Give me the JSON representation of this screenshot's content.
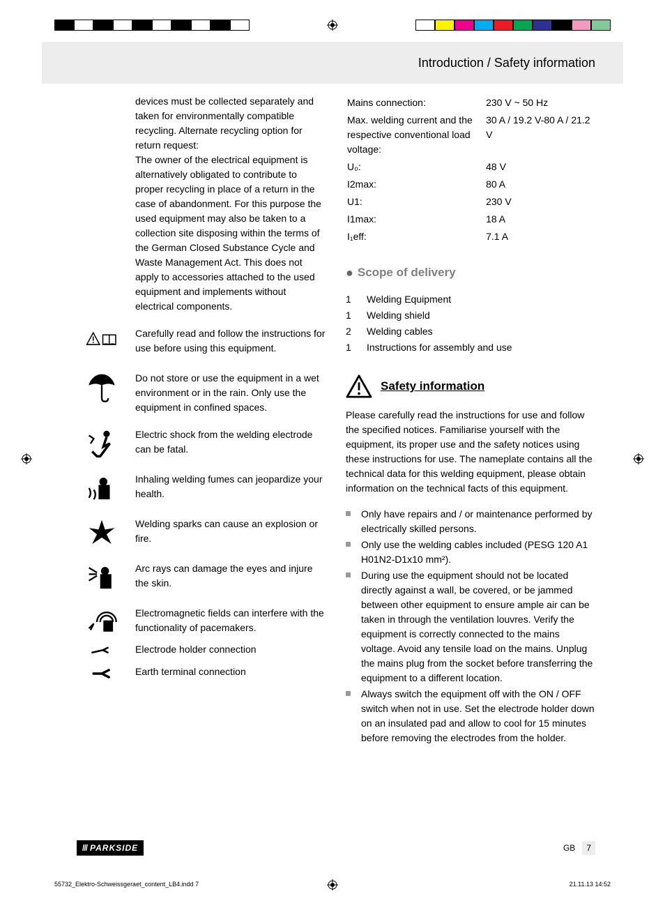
{
  "printer_bars": {
    "left_colors": [
      "#000000",
      "#ffffff",
      "#000000",
      "#ffffff",
      "#000000",
      "#ffffff",
      "#000000",
      "#ffffff",
      "#000000",
      "#ffffff"
    ],
    "right_colors": [
      "#ffffff",
      "#fff200",
      "#ec008c",
      "#00aeef",
      "#ed1c24",
      "#00a651",
      "#2e3192",
      "#000000",
      "#f49ac1",
      "#82ca9c"
    ]
  },
  "header": {
    "title": "Introduction / Safety information"
  },
  "left_column": {
    "intro_para": "devices must be collected separately and taken for environmentally compatible recycling. Alternate recycling option for return request:\nThe owner of the electrical equipment is alternatively obligated to contribute to proper recycling in place of a return in the case of abandonment. For this purpose the used equipment may also be taken to a collection site disposing within the terms of the German Closed  Substance Cycle and Waste Management Act. This does not apply to accessories attached to the used equipment and implements without electrical components.",
    "icon_items": [
      {
        "icon": "warning-book",
        "text": "Carefully read and follow the instructions for use before using this equipment."
      },
      {
        "icon": "umbrella",
        "text": "Do not store or use the equipment in a wet environment or in the rain. Only use the equipment in confined spaces."
      },
      {
        "icon": "shock",
        "text": "Electric shock from the welding electrode can be fatal."
      },
      {
        "icon": "fumes",
        "text": "Inhaling welding fumes can jeopardize your health."
      },
      {
        "icon": "explosion",
        "text": "Welding sparks can cause an explosion or fire."
      },
      {
        "icon": "arc-eyes",
        "text": "Arc rays can damage the eyes and injure the skin."
      },
      {
        "icon": "emf",
        "text": "Electromagnetic fields can interfere with the functionality of pacemakers."
      },
      {
        "icon": "holder",
        "text": "Electrode holder connection"
      },
      {
        "icon": "clamp",
        "text": "Earth terminal connection"
      }
    ]
  },
  "right_column": {
    "tech": [
      {
        "label": "Mains connection:",
        "value": "230 V ~ 50 Hz"
      },
      {
        "label": "Max. welding current and the respective conventional load voltage:",
        "value": "30 A / 19.2 V-80 A / 21.2 V"
      },
      {
        "label": "U₀:",
        "value": "48 V"
      },
      {
        "label": "I2max:",
        "value": "80 A"
      },
      {
        "label": "U1:",
        "value": "230 V"
      },
      {
        "label": "I1max:",
        "value": "18 A"
      },
      {
        "label": "I₁eff:",
        "value": "7.1 A"
      }
    ],
    "scope_heading": "Scope of delivery",
    "scope_items": [
      {
        "qty": "1",
        "name": "Welding Equipment"
      },
      {
        "qty": "1",
        "name": "Welding shield"
      },
      {
        "qty": "2",
        "name": "Welding cables"
      },
      {
        "qty": "1",
        "name": "Instructions for assembly and use"
      }
    ],
    "safety_heading": "Safety information",
    "safety_para": "Please carefully read the instructions for use and follow the specified notices. Familiarise yourself with the equipment, its proper use and the safety notices using these instructions for use. The nameplate contains all the technical data for this welding equipment, please obtain information on the technical facts of this equipment.",
    "safety_bullets": [
      "Only have repairs and / or maintenance performed by electrically skilled persons.",
      "Only use the welding cables included (PESG 120 A1 H01N2-D1x10 mm²).",
      "During use the equipment should not be located directly against a wall, be covered, or be jammed between other equipment to ensure ample air can be taken in through the ventilation louvres. Verify the equipment is correctly connected to the mains voltage. Avoid any tensile load on the mains. Unplug the mains plug from the socket before transferring the equipment to a different location.",
      "Always switch the equipment off with the ON / OFF switch when not in use. Set the electrode holder down on an insulated pad and allow to cool for 15 minutes before removing the electrodes from the holder."
    ]
  },
  "footer": {
    "brand": "PARKSIDE",
    "lang": "GB",
    "page": "7"
  },
  "slug": {
    "file": "55732_Elektro-Schweissgeraet_content_LB4.indd   7",
    "date": "21.11.13   14:52"
  }
}
